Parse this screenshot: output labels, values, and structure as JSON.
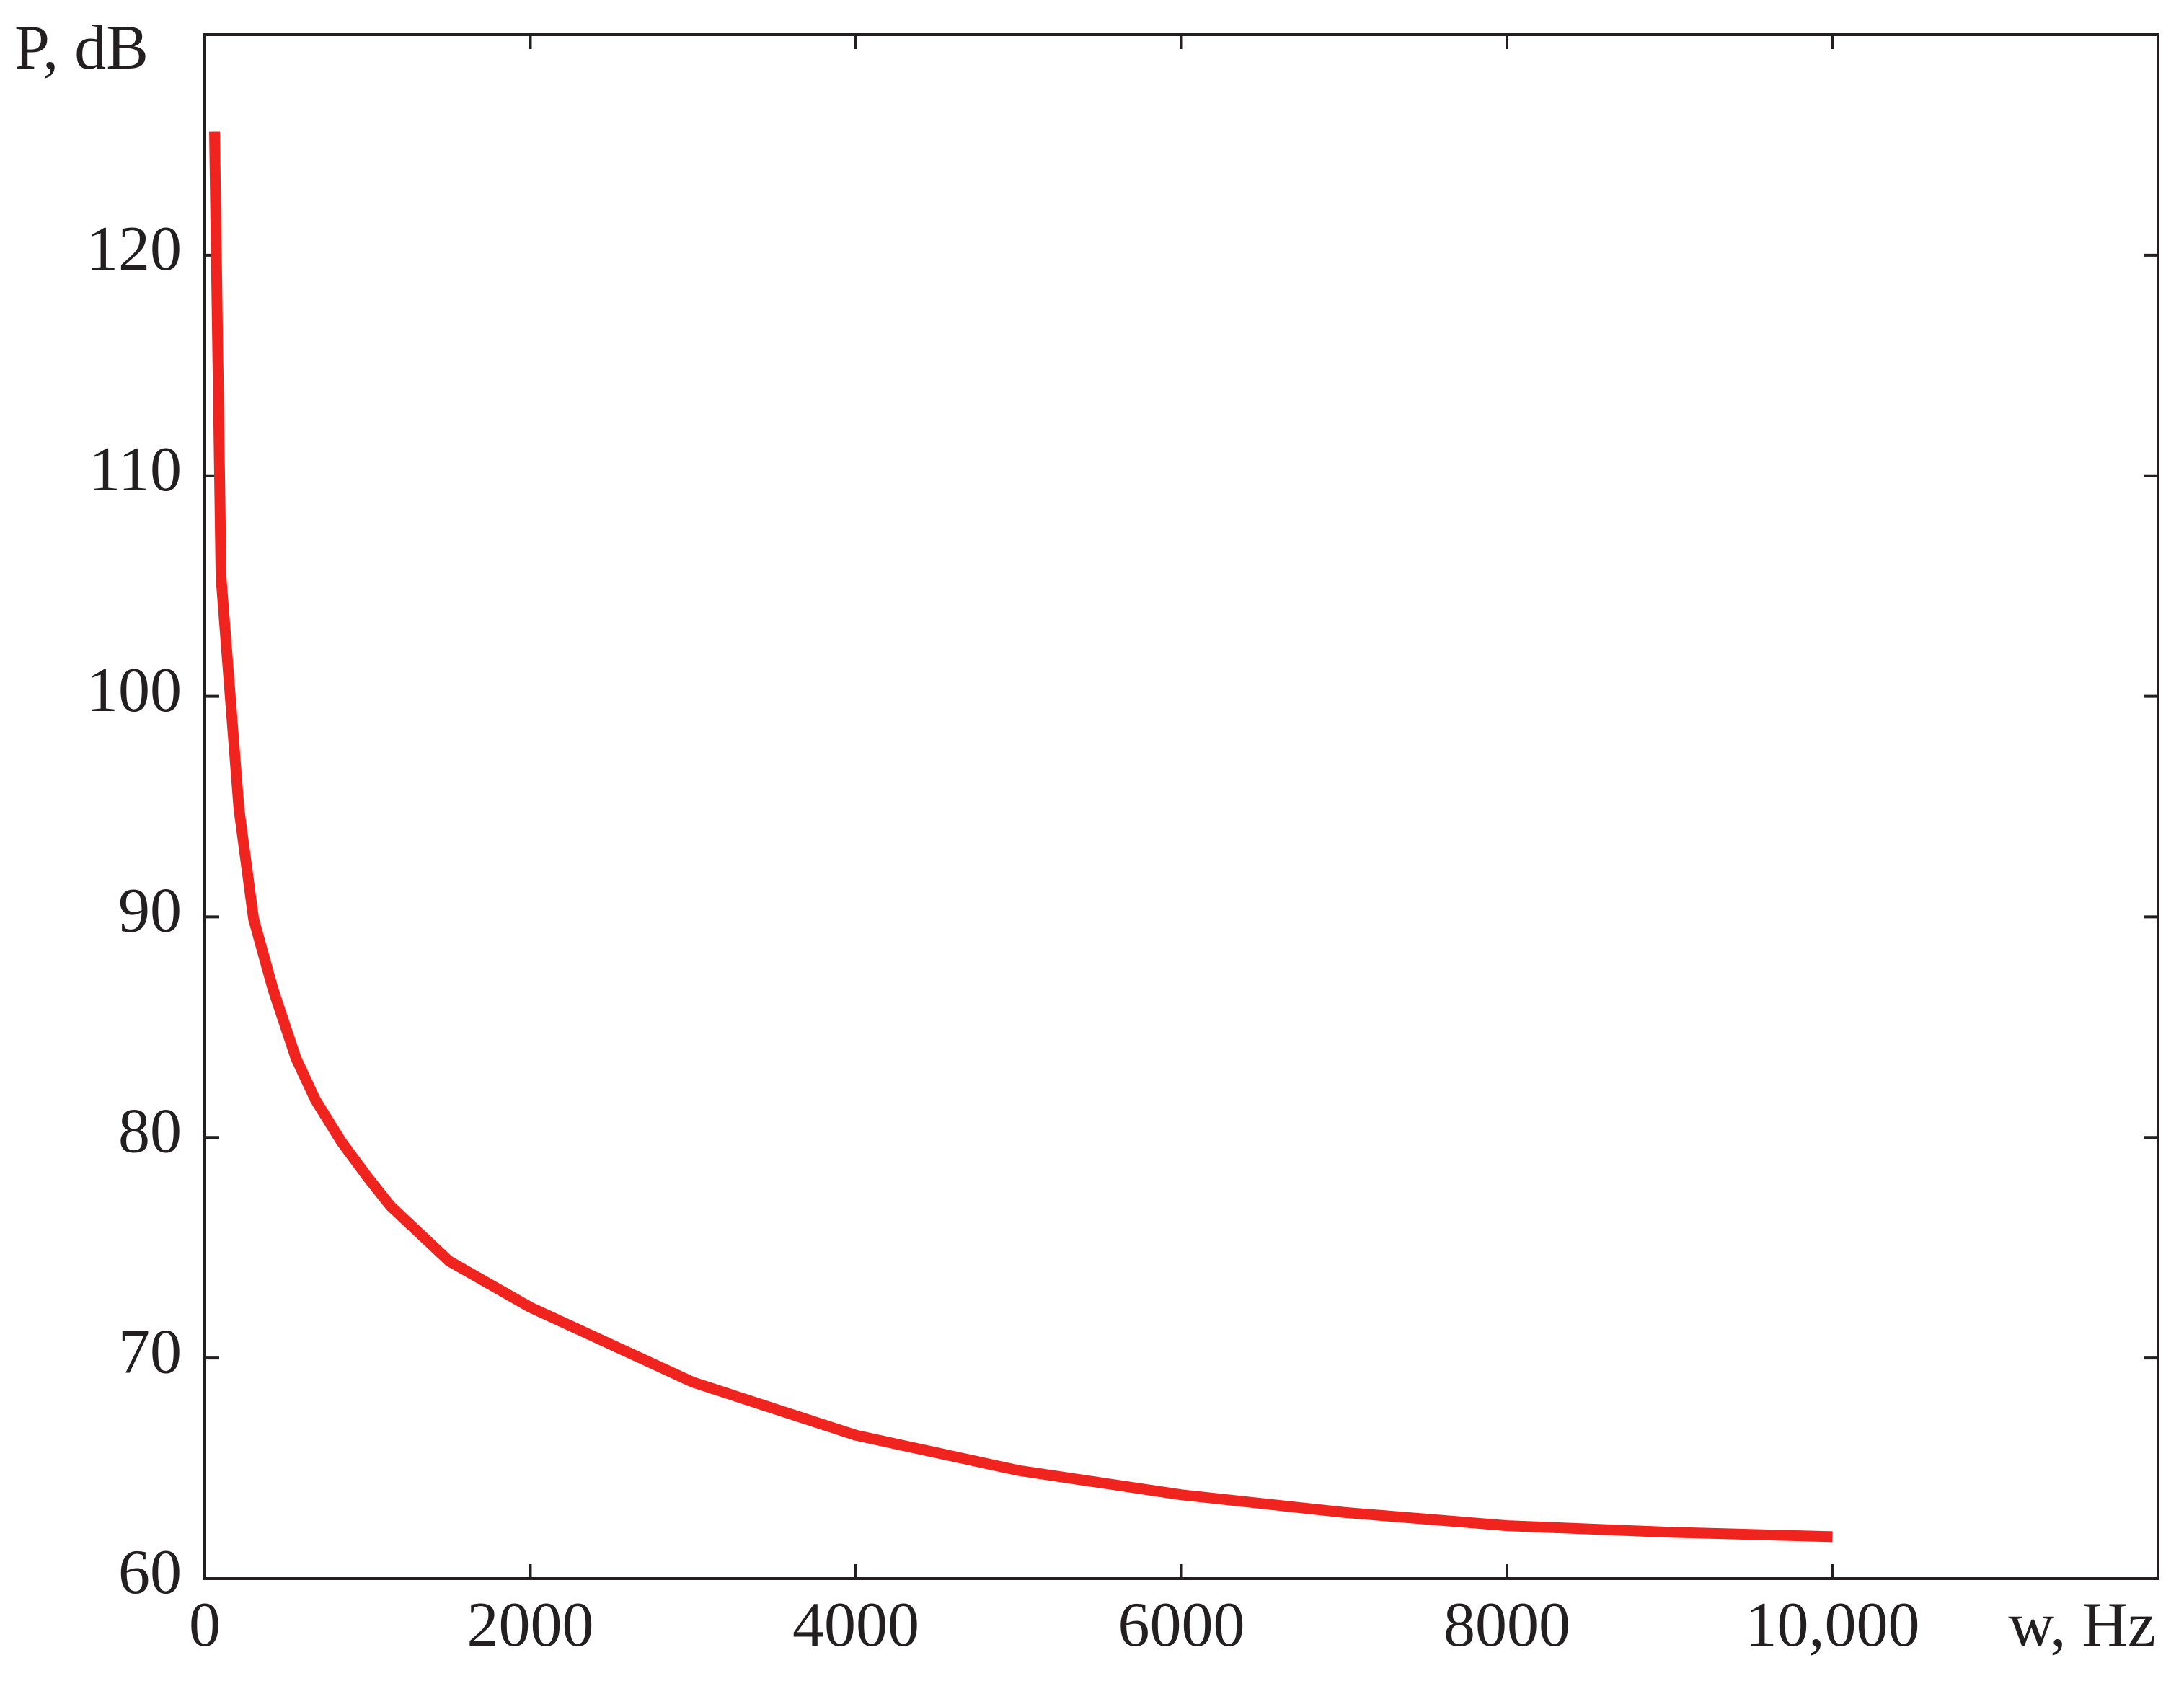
{
  "chart_data": {
    "type": "line",
    "x_label": "w, Hz",
    "y_label": "P, dB",
    "x": [
      60,
      100,
      210,
      300,
      420,
      560,
      680,
      840,
      1000,
      1140,
      1500,
      2000,
      2500,
      3000,
      4000,
      5000,
      6000,
      7000,
      8000,
      9000,
      10000
    ],
    "series": [
      {
        "color": "#f0241e",
        "values": [
          125.6,
          105.4,
          94.9,
          89.9,
          86.7,
          83.6,
          81.7,
          79.8,
          78.2,
          76.9,
          74.4,
          72.3,
          70.6,
          68.9,
          66.5,
          64.9,
          63.8,
          63.0,
          62.4,
          62.1,
          61.9
        ]
      }
    ],
    "xlim": [
      0,
      12000
    ],
    "xticks": [
      0,
      2000,
      4000,
      6000,
      8000,
      {
        "value": 10000,
        "label": "10,000"
      }
    ],
    "ylim": [
      60,
      130
    ],
    "yticks": [
      60,
      70,
      80,
      90,
      100,
      110,
      120
    ]
  }
}
